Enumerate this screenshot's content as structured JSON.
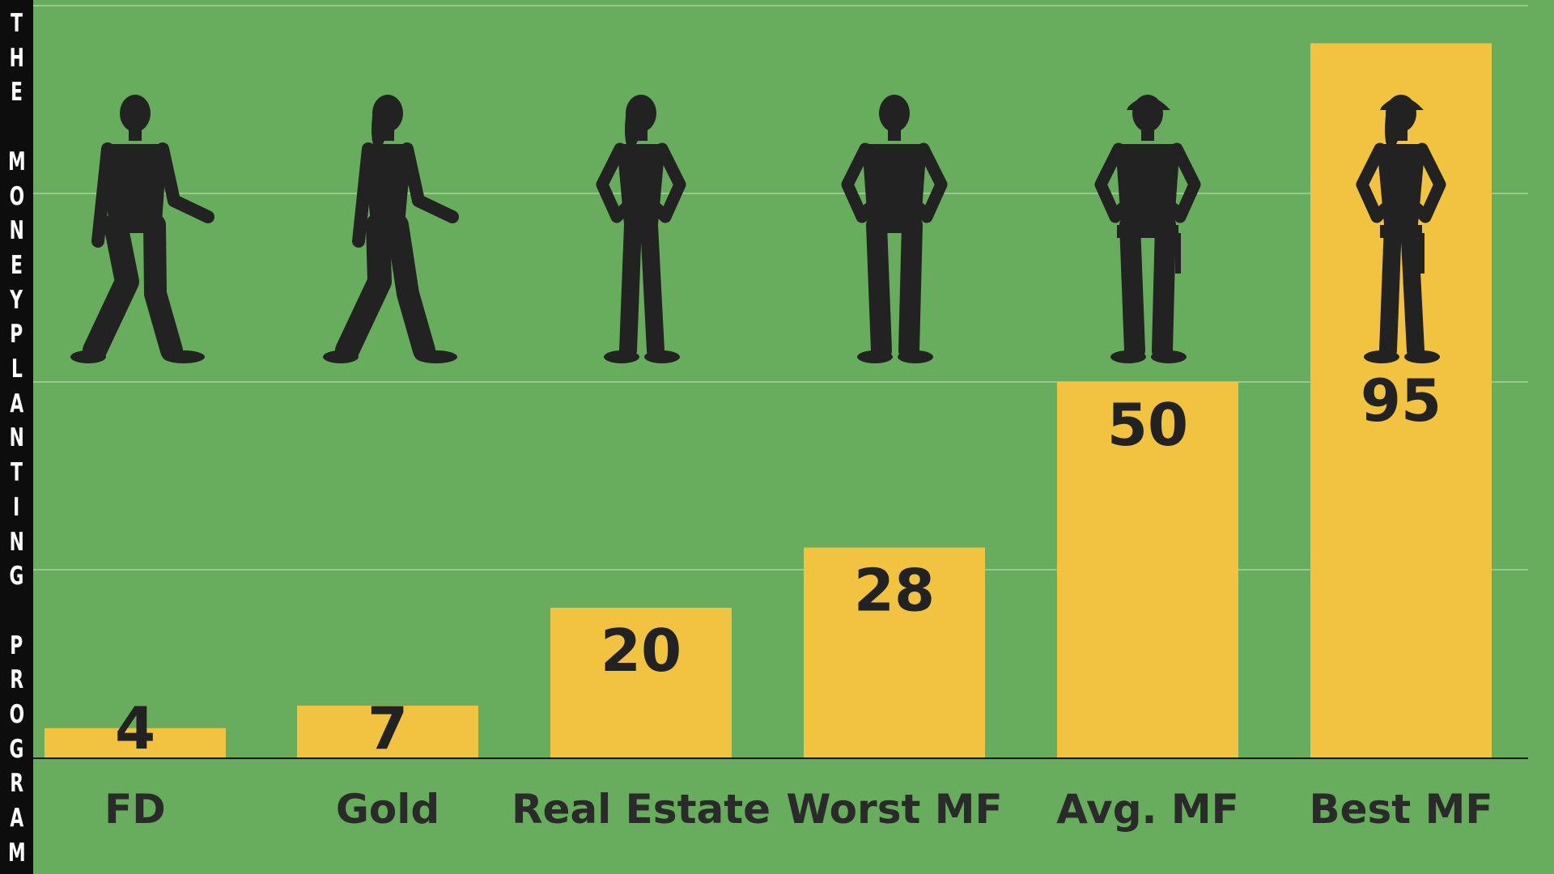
{
  "sidebar": {
    "text": "THE MONEYPLANTING PROGRAM"
  },
  "colors": {
    "background": "#68ad5d",
    "bar": "#f2c241",
    "sidebar": "#0d0d0d",
    "text": "#222222",
    "silhouette": "#222222"
  },
  "chart_data": {
    "type": "bar",
    "title": "",
    "xlabel": "",
    "ylabel": "",
    "grid": true,
    "ylim": [
      0,
      100
    ],
    "categories": [
      "FD",
      "Gold",
      "Real Estate",
      "Worst MF",
      "Avg. MF",
      "Best MF"
    ],
    "values": [
      4,
      7,
      20,
      28,
      50,
      95
    ],
    "data_labels": [
      "4",
      "7",
      "20",
      "28",
      "50",
      "95"
    ],
    "icons": [
      "walking-man-icon",
      "walking-woman-icon",
      "standing-woman-icon",
      "standing-man-icon",
      "worker-man-icon",
      "worker-woman-icon"
    ]
  }
}
